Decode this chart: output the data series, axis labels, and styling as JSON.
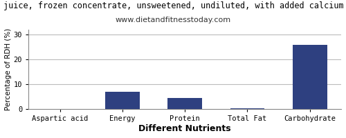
{
  "title": "juice, frozen concentrate, unsweetened, undiluted, with added calcium p",
  "subtitle": "www.dietandfitnesstoday.com",
  "xlabel": "Different Nutrients",
  "ylabel": "Percentage of RDH (%)",
  "categories": [
    "Aspartic acid",
    "Energy",
    "Protein",
    "Total Fat",
    "Carbohydrate"
  ],
  "values": [
    0.1,
    7.1,
    4.5,
    0.3,
    26.0
  ],
  "bar_color": "#2e4080",
  "ylim": [
    0,
    32
  ],
  "yticks": [
    0,
    10,
    20,
    30
  ],
  "background_color": "#ffffff",
  "grid_color": "#bbbbbb",
  "title_fontsize": 8.5,
  "subtitle_fontsize": 8,
  "xlabel_fontsize": 9,
  "ylabel_fontsize": 7.5,
  "tick_fontsize": 7.5,
  "bar_width": 0.55
}
